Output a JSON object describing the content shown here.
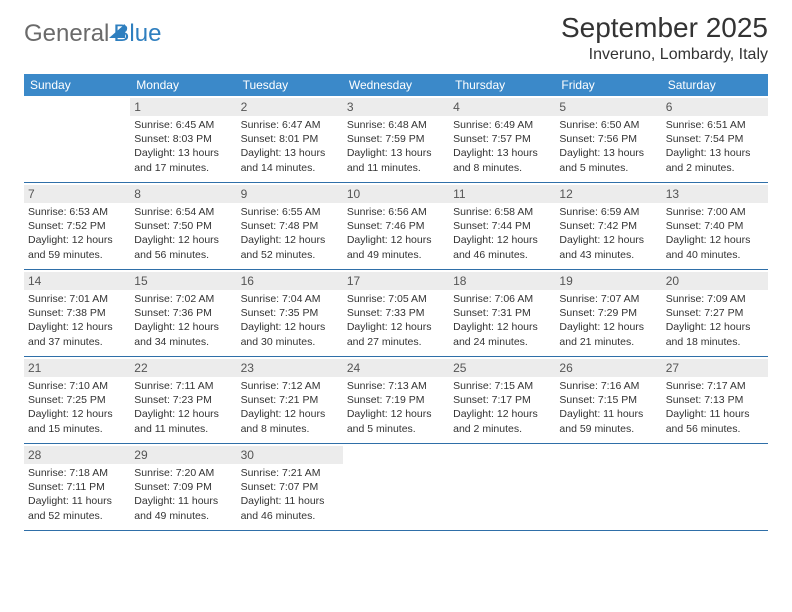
{
  "logo": {
    "text1": "General",
    "text2": "Blue"
  },
  "title": "September 2025",
  "location": "Inveruno, Lombardy, Italy",
  "colors": {
    "header_bg": "#3b89c9",
    "header_text": "#ffffff",
    "daynum_bg": "#ececec",
    "rule": "#2f6fa8"
  },
  "day_names": [
    "Sunday",
    "Monday",
    "Tuesday",
    "Wednesday",
    "Thursday",
    "Friday",
    "Saturday"
  ],
  "weeks": [
    [
      null,
      {
        "n": "1",
        "sr": "6:45 AM",
        "ss": "8:03 PM",
        "dl": "13 hours and 17 minutes."
      },
      {
        "n": "2",
        "sr": "6:47 AM",
        "ss": "8:01 PM",
        "dl": "13 hours and 14 minutes."
      },
      {
        "n": "3",
        "sr": "6:48 AM",
        "ss": "7:59 PM",
        "dl": "13 hours and 11 minutes."
      },
      {
        "n": "4",
        "sr": "6:49 AM",
        "ss": "7:57 PM",
        "dl": "13 hours and 8 minutes."
      },
      {
        "n": "5",
        "sr": "6:50 AM",
        "ss": "7:56 PM",
        "dl": "13 hours and 5 minutes."
      },
      {
        "n": "6",
        "sr": "6:51 AM",
        "ss": "7:54 PM",
        "dl": "13 hours and 2 minutes."
      }
    ],
    [
      {
        "n": "7",
        "sr": "6:53 AM",
        "ss": "7:52 PM",
        "dl": "12 hours and 59 minutes."
      },
      {
        "n": "8",
        "sr": "6:54 AM",
        "ss": "7:50 PM",
        "dl": "12 hours and 56 minutes."
      },
      {
        "n": "9",
        "sr": "6:55 AM",
        "ss": "7:48 PM",
        "dl": "12 hours and 52 minutes."
      },
      {
        "n": "10",
        "sr": "6:56 AM",
        "ss": "7:46 PM",
        "dl": "12 hours and 49 minutes."
      },
      {
        "n": "11",
        "sr": "6:58 AM",
        "ss": "7:44 PM",
        "dl": "12 hours and 46 minutes."
      },
      {
        "n": "12",
        "sr": "6:59 AM",
        "ss": "7:42 PM",
        "dl": "12 hours and 43 minutes."
      },
      {
        "n": "13",
        "sr": "7:00 AM",
        "ss": "7:40 PM",
        "dl": "12 hours and 40 minutes."
      }
    ],
    [
      {
        "n": "14",
        "sr": "7:01 AM",
        "ss": "7:38 PM",
        "dl": "12 hours and 37 minutes."
      },
      {
        "n": "15",
        "sr": "7:02 AM",
        "ss": "7:36 PM",
        "dl": "12 hours and 34 minutes."
      },
      {
        "n": "16",
        "sr": "7:04 AM",
        "ss": "7:35 PM",
        "dl": "12 hours and 30 minutes."
      },
      {
        "n": "17",
        "sr": "7:05 AM",
        "ss": "7:33 PM",
        "dl": "12 hours and 27 minutes."
      },
      {
        "n": "18",
        "sr": "7:06 AM",
        "ss": "7:31 PM",
        "dl": "12 hours and 24 minutes."
      },
      {
        "n": "19",
        "sr": "7:07 AM",
        "ss": "7:29 PM",
        "dl": "12 hours and 21 minutes."
      },
      {
        "n": "20",
        "sr": "7:09 AM",
        "ss": "7:27 PM",
        "dl": "12 hours and 18 minutes."
      }
    ],
    [
      {
        "n": "21",
        "sr": "7:10 AM",
        "ss": "7:25 PM",
        "dl": "12 hours and 15 minutes."
      },
      {
        "n": "22",
        "sr": "7:11 AM",
        "ss": "7:23 PM",
        "dl": "12 hours and 11 minutes."
      },
      {
        "n": "23",
        "sr": "7:12 AM",
        "ss": "7:21 PM",
        "dl": "12 hours and 8 minutes."
      },
      {
        "n": "24",
        "sr": "7:13 AM",
        "ss": "7:19 PM",
        "dl": "12 hours and 5 minutes."
      },
      {
        "n": "25",
        "sr": "7:15 AM",
        "ss": "7:17 PM",
        "dl": "12 hours and 2 minutes."
      },
      {
        "n": "26",
        "sr": "7:16 AM",
        "ss": "7:15 PM",
        "dl": "11 hours and 59 minutes."
      },
      {
        "n": "27",
        "sr": "7:17 AM",
        "ss": "7:13 PM",
        "dl": "11 hours and 56 minutes."
      }
    ],
    [
      {
        "n": "28",
        "sr": "7:18 AM",
        "ss": "7:11 PM",
        "dl": "11 hours and 52 minutes."
      },
      {
        "n": "29",
        "sr": "7:20 AM",
        "ss": "7:09 PM",
        "dl": "11 hours and 49 minutes."
      },
      {
        "n": "30",
        "sr": "7:21 AM",
        "ss": "7:07 PM",
        "dl": "11 hours and 46 minutes."
      },
      null,
      null,
      null,
      null
    ]
  ],
  "labels": {
    "sunrise": "Sunrise:",
    "sunset": "Sunset:",
    "daylight": "Daylight:"
  }
}
